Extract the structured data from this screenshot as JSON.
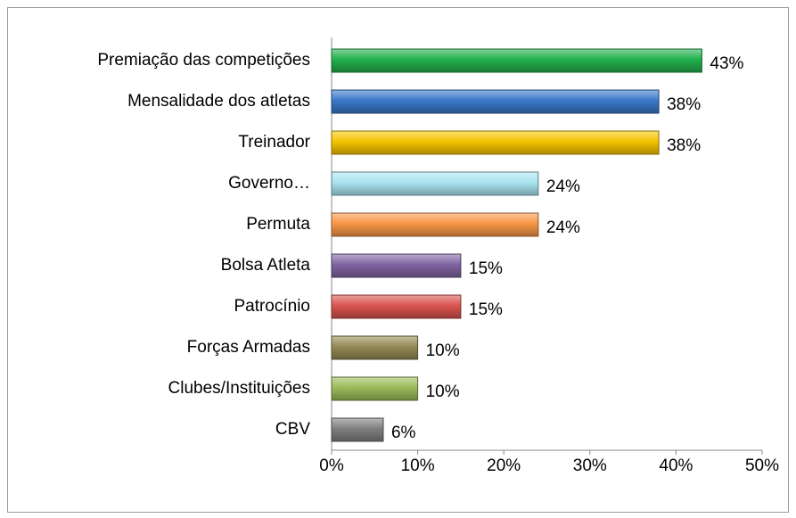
{
  "chart_data": {
    "type": "hbar",
    "categories": [
      "Premiação das competições",
      "Mensalidade dos atletas",
      "Treinador",
      "Governo…",
      "Permuta",
      "Bolsa Atleta",
      "Patrocínio",
      "Forças Armadas",
      "Clubes/Instituições",
      "CBV"
    ],
    "values": [
      43,
      38,
      38,
      24,
      24,
      15,
      15,
      10,
      10,
      6
    ],
    "value_labels": [
      "43%",
      "38%",
      "38%",
      "24%",
      "24%",
      "15%",
      "15%",
      "10%",
      "10%",
      "6%"
    ],
    "colors": [
      "#22b04c",
      "#3a78c8",
      "#f5c400",
      "#a8e4f0",
      "#f79646",
      "#8064a2",
      "#d9534f",
      "#948a54",
      "#9bbb59",
      "#7f7f7f"
    ],
    "xlim": [
      0,
      50
    ],
    "xticks": [
      {
        "value": 0,
        "label": "0%"
      },
      {
        "value": 10,
        "label": "10%"
      },
      {
        "value": 20,
        "label": "20%"
      },
      {
        "value": 30,
        "label": "30%"
      },
      {
        "value": 40,
        "label": "40%"
      },
      {
        "value": 50,
        "label": "50%"
      }
    ]
  }
}
